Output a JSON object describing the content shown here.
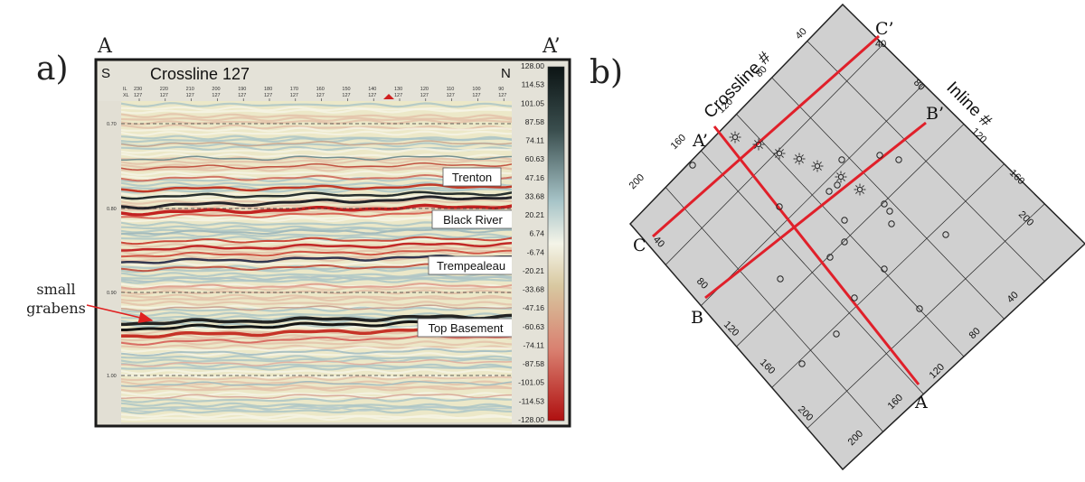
{
  "panel_a": {
    "letter": "a)",
    "end_left": "A",
    "end_right": "A’",
    "dir_left": "S",
    "dir_right": "N",
    "title": "Crossline 127",
    "trace_labels": [
      "230",
      "220",
      "210",
      "200",
      "190",
      "180",
      "170",
      "160",
      "150",
      "140",
      "130",
      "120",
      "110",
      "100",
      "90"
    ],
    "trace_sub": "127",
    "trace_prefix": [
      "IL",
      "XL"
    ],
    "time_ticks": [
      "0.70",
      "0.80",
      "0.90",
      "1.00"
    ],
    "colorbar_ticks": [
      "128.00",
      "114.53",
      "101.05",
      "87.58",
      "74.11",
      "60.63",
      "47.16",
      "33.68",
      "20.21",
      "6.74",
      "-6.74",
      "-20.21",
      "-33.68",
      "-47.16",
      "-60.63",
      "-74.11",
      "-87.58",
      "-101.05",
      "-114.53",
      "-128.00"
    ],
    "horizons": [
      {
        "label": "Trenton"
      },
      {
        "label": "Black River"
      },
      {
        "label": "Trempealeau"
      },
      {
        "label": "Top Basement"
      }
    ],
    "annotation": {
      "line1": "small",
      "line2": "grabens"
    },
    "colors": {
      "positive": "#1a2a2a",
      "negative": "#c41a1a",
      "neutral": "#ece8c8",
      "arrow": "#e02020"
    }
  },
  "panel_b": {
    "letter": "b)",
    "axis_crossline": "Crossline #",
    "axis_inline": "Inline #",
    "crossline_ticks": [
      "40",
      "80",
      "120",
      "160",
      "200"
    ],
    "inline_ticks": [
      "80",
      "120",
      "160",
      "200"
    ],
    "edge_bottom_right_ticks": [
      "40",
      "80",
      "120"
    ],
    "edge_bottom_left_ticks": [
      "80",
      "120",
      "160",
      "200"
    ],
    "edge_bottom_ticks": [
      "160",
      "200"
    ],
    "line_labels": {
      "A": "A",
      "A_prime": "A’",
      "B": "B",
      "B_prime": "B’",
      "C": "C",
      "C_prime": "C’",
      "C_edge": "40",
      "C_prime_edge": "40"
    },
    "wells_count_note": "",
    "colors": {
      "map_fill": "#d0d0d0",
      "grid": "#202020",
      "section_line": "#e0202a"
    }
  }
}
